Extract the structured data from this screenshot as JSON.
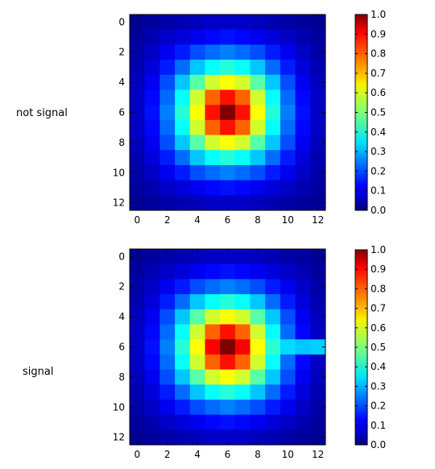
{
  "chart_data": [
    {
      "type": "heatmap",
      "side_label": "not signal",
      "x_ticks": [
        "0",
        "2",
        "4",
        "6",
        "8",
        "10",
        "12"
      ],
      "y_ticks": [
        "0",
        "2",
        "4",
        "6",
        "8",
        "10",
        "12"
      ],
      "colorbar": {
        "range": [
          0.0,
          1.0
        ],
        "ticks": [
          "0.0",
          "0.1",
          "0.2",
          "0.3",
          "0.4",
          "0.5",
          "0.6",
          "0.7",
          "0.8",
          "0.9",
          "1.0"
        ],
        "colormap": "jet"
      },
      "grid": false,
      "values": [
        [
          0.02,
          0.03,
          0.04,
          0.05,
          0.06,
          0.07,
          0.07,
          0.07,
          0.06,
          0.05,
          0.04,
          0.03,
          0.02
        ],
        [
          0.03,
          0.05,
          0.07,
          0.09,
          0.11,
          0.13,
          0.14,
          0.13,
          0.11,
          0.09,
          0.07,
          0.05,
          0.03
        ],
        [
          0.04,
          0.07,
          0.11,
          0.15,
          0.2,
          0.23,
          0.25,
          0.23,
          0.2,
          0.15,
          0.11,
          0.07,
          0.04
        ],
        [
          0.05,
          0.09,
          0.15,
          0.23,
          0.32,
          0.38,
          0.41,
          0.38,
          0.32,
          0.23,
          0.15,
          0.09,
          0.05
        ],
        [
          0.06,
          0.11,
          0.2,
          0.32,
          0.46,
          0.58,
          0.62,
          0.58,
          0.46,
          0.32,
          0.2,
          0.11,
          0.06
        ],
        [
          0.07,
          0.13,
          0.23,
          0.38,
          0.58,
          0.78,
          0.86,
          0.78,
          0.58,
          0.38,
          0.23,
          0.13,
          0.07
        ],
        [
          0.07,
          0.14,
          0.25,
          0.41,
          0.62,
          0.86,
          1.0,
          0.86,
          0.62,
          0.41,
          0.25,
          0.14,
          0.07
        ],
        [
          0.07,
          0.13,
          0.23,
          0.38,
          0.58,
          0.78,
          0.86,
          0.78,
          0.58,
          0.38,
          0.23,
          0.13,
          0.07
        ],
        [
          0.06,
          0.11,
          0.2,
          0.32,
          0.46,
          0.58,
          0.62,
          0.58,
          0.46,
          0.32,
          0.2,
          0.11,
          0.06
        ],
        [
          0.05,
          0.09,
          0.15,
          0.23,
          0.32,
          0.38,
          0.41,
          0.38,
          0.32,
          0.23,
          0.15,
          0.09,
          0.05
        ],
        [
          0.04,
          0.07,
          0.11,
          0.15,
          0.2,
          0.23,
          0.25,
          0.23,
          0.2,
          0.15,
          0.11,
          0.07,
          0.04
        ],
        [
          0.03,
          0.05,
          0.07,
          0.09,
          0.11,
          0.13,
          0.14,
          0.13,
          0.11,
          0.09,
          0.07,
          0.05,
          0.03
        ],
        [
          0.02,
          0.03,
          0.04,
          0.05,
          0.06,
          0.07,
          0.07,
          0.07,
          0.06,
          0.05,
          0.04,
          0.03,
          0.02
        ]
      ]
    },
    {
      "type": "heatmap",
      "side_label": "signal",
      "x_ticks": [
        "0",
        "2",
        "4",
        "6",
        "8",
        "10",
        "12"
      ],
      "y_ticks": [
        "0",
        "2",
        "4",
        "6",
        "8",
        "10",
        "12"
      ],
      "colorbar": {
        "range": [
          0.0,
          1.0
        ],
        "ticks": [
          "0.0",
          "0.1",
          "0.2",
          "0.3",
          "0.4",
          "0.5",
          "0.6",
          "0.7",
          "0.8",
          "0.9",
          "1.0"
        ],
        "colormap": "jet"
      },
      "grid": false,
      "values": [
        [
          0.02,
          0.03,
          0.04,
          0.05,
          0.06,
          0.07,
          0.07,
          0.07,
          0.06,
          0.05,
          0.04,
          0.03,
          0.02
        ],
        [
          0.03,
          0.05,
          0.07,
          0.09,
          0.11,
          0.13,
          0.14,
          0.13,
          0.11,
          0.09,
          0.07,
          0.05,
          0.03
        ],
        [
          0.04,
          0.07,
          0.11,
          0.15,
          0.2,
          0.23,
          0.25,
          0.23,
          0.2,
          0.15,
          0.11,
          0.07,
          0.04
        ],
        [
          0.05,
          0.09,
          0.15,
          0.23,
          0.32,
          0.38,
          0.41,
          0.38,
          0.32,
          0.23,
          0.15,
          0.09,
          0.05
        ],
        [
          0.06,
          0.11,
          0.2,
          0.32,
          0.46,
          0.58,
          0.62,
          0.58,
          0.46,
          0.32,
          0.2,
          0.11,
          0.06
        ],
        [
          0.07,
          0.13,
          0.23,
          0.38,
          0.58,
          0.78,
          0.86,
          0.78,
          0.58,
          0.38,
          0.23,
          0.13,
          0.07
        ],
        [
          0.07,
          0.14,
          0.25,
          0.41,
          0.62,
          0.88,
          1.0,
          0.88,
          0.62,
          0.42,
          0.34,
          0.32,
          0.33
        ],
        [
          0.07,
          0.13,
          0.23,
          0.38,
          0.58,
          0.78,
          0.86,
          0.78,
          0.58,
          0.38,
          0.23,
          0.13,
          0.07
        ],
        [
          0.06,
          0.11,
          0.2,
          0.32,
          0.46,
          0.58,
          0.62,
          0.58,
          0.46,
          0.32,
          0.2,
          0.11,
          0.06
        ],
        [
          0.05,
          0.09,
          0.15,
          0.23,
          0.32,
          0.38,
          0.41,
          0.38,
          0.32,
          0.23,
          0.15,
          0.09,
          0.05
        ],
        [
          0.04,
          0.07,
          0.11,
          0.15,
          0.2,
          0.23,
          0.25,
          0.23,
          0.2,
          0.15,
          0.11,
          0.07,
          0.04
        ],
        [
          0.03,
          0.05,
          0.07,
          0.09,
          0.11,
          0.13,
          0.14,
          0.13,
          0.11,
          0.09,
          0.07,
          0.05,
          0.03
        ],
        [
          0.02,
          0.03,
          0.04,
          0.05,
          0.06,
          0.07,
          0.07,
          0.07,
          0.06,
          0.05,
          0.04,
          0.03,
          0.02
        ]
      ]
    }
  ]
}
